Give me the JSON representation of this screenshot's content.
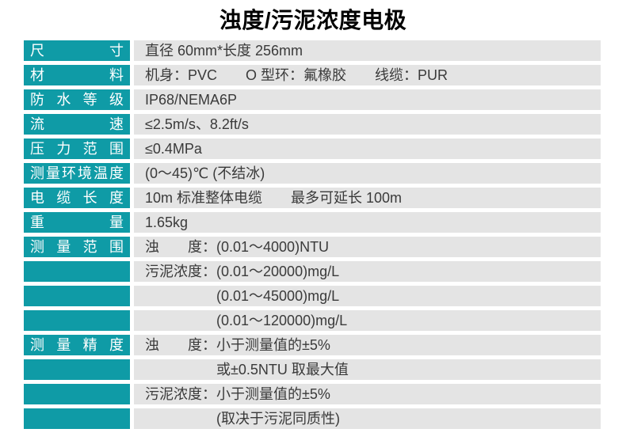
{
  "page": {
    "title": "浊度/污泥浓度电极"
  },
  "colors": {
    "label_bg": "#0F9BA6",
    "label_text": "#FFFFFF",
    "value_bg": "#E4E4E4",
    "value_text": "#3A3A3A",
    "title_text": "#000000",
    "page_bg": "#FFFFFF"
  },
  "table": {
    "rows": [
      {
        "label": "尺寸",
        "value": "直径 60mm*长度 256mm"
      },
      {
        "label": "材料",
        "value": "机身：PVC　　O 型环：氟橡胶　　线缆：PUR"
      },
      {
        "label": "防水等级",
        "value": "IP68/NEMA6P"
      },
      {
        "label": "流速",
        "value": "≤2.5m/s、8.2ft/s"
      },
      {
        "label": "压力范围",
        "value": "≤0.4MPa"
      },
      {
        "label": "测量环境温度",
        "value": "(0～45)℃ (不结冰)"
      },
      {
        "label": "电缆长度",
        "value": "10m 标准整体电缆　　最多可延长 100m"
      },
      {
        "label": "重量",
        "value": "1.65kg"
      },
      {
        "label": "测量范围",
        "value": "浊　　度：(0.01～4000)NTU"
      },
      {
        "label": "",
        "value": "污泥浓度：(0.01～20000)mg/L"
      },
      {
        "label": "",
        "value": "(0.01～45000)mg/L"
      },
      {
        "label": "",
        "value": "(0.01～120000)mg/L"
      },
      {
        "label": "测量精度",
        "value": "浊　　度：小于测量值的±5%"
      },
      {
        "label": "",
        "value": "或±0.5NTU 取最大值"
      },
      {
        "label": "",
        "value": "污泥浓度：小于测量值的±5%"
      },
      {
        "label": "",
        "value": "(取决于污泥同质性)"
      }
    ]
  }
}
